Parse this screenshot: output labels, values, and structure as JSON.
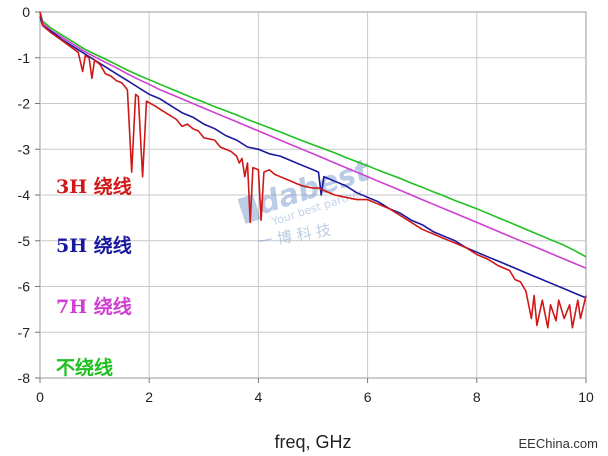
{
  "chart_data": {
    "type": "line",
    "xlabel": "freq, GHz",
    "ylabel": "",
    "xlim": [
      0,
      10
    ],
    "ylim": [
      -8,
      0
    ],
    "xticks": [
      "0",
      "2",
      "4",
      "6",
      "8",
      "10"
    ],
    "yticks": [
      "0",
      "-1",
      "-2",
      "-3",
      "-4",
      "-5",
      "-6",
      "-7",
      "-8"
    ],
    "grid": true,
    "legend_position": "left, inside plot",
    "series": [
      {
        "name": "3H 绕线",
        "color": "#d01818",
        "points": [
          [
            0,
            0
          ],
          [
            0.05,
            -0.3
          ],
          [
            0.2,
            -0.45
          ],
          [
            0.4,
            -0.62
          ],
          [
            0.55,
            -0.75
          ],
          [
            0.7,
            -0.88
          ],
          [
            0.78,
            -1.3
          ],
          [
            0.83,
            -0.95
          ],
          [
            0.9,
            -1.0
          ],
          [
            0.95,
            -1.45
          ],
          [
            1.0,
            -1.05
          ],
          [
            1.1,
            -1.15
          ],
          [
            1.2,
            -1.35
          ],
          [
            1.3,
            -1.4
          ],
          [
            1.4,
            -1.5
          ],
          [
            1.5,
            -1.55
          ],
          [
            1.6,
            -1.7
          ],
          [
            1.68,
            -3.5
          ],
          [
            1.75,
            -1.8
          ],
          [
            1.8,
            -1.85
          ],
          [
            1.88,
            -3.6
          ],
          [
            1.95,
            -1.95
          ],
          [
            2.1,
            -2.05
          ],
          [
            2.3,
            -2.2
          ],
          [
            2.5,
            -2.35
          ],
          [
            2.6,
            -2.5
          ],
          [
            2.7,
            -2.45
          ],
          [
            2.8,
            -2.55
          ],
          [
            2.9,
            -2.6
          ],
          [
            3.0,
            -2.75
          ],
          [
            3.2,
            -2.8
          ],
          [
            3.3,
            -2.95
          ],
          [
            3.5,
            -3.05
          ],
          [
            3.6,
            -3.15
          ],
          [
            3.65,
            -3.3
          ],
          [
            3.7,
            -3.2
          ],
          [
            3.75,
            -3.6
          ],
          [
            3.8,
            -3.3
          ],
          [
            3.85,
            -4.6
          ],
          [
            3.9,
            -3.4
          ],
          [
            4.0,
            -3.45
          ],
          [
            4.05,
            -4.55
          ],
          [
            4.1,
            -3.5
          ],
          [
            4.2,
            -3.45
          ],
          [
            4.3,
            -3.55
          ],
          [
            4.4,
            -3.6
          ],
          [
            4.5,
            -3.65
          ],
          [
            4.6,
            -3.7
          ],
          [
            4.7,
            -3.75
          ],
          [
            4.8,
            -3.8
          ],
          [
            5.0,
            -3.85
          ],
          [
            5.1,
            -3.85
          ],
          [
            5.2,
            -3.9
          ],
          [
            5.3,
            -3.95
          ],
          [
            5.4,
            -4.0
          ],
          [
            5.6,
            -4.05
          ],
          [
            5.8,
            -4.1
          ],
          [
            6.0,
            -4.1
          ],
          [
            6.2,
            -4.2
          ],
          [
            6.4,
            -4.3
          ],
          [
            6.6,
            -4.45
          ],
          [
            6.8,
            -4.6
          ],
          [
            7.0,
            -4.75
          ],
          [
            7.2,
            -4.85
          ],
          [
            7.4,
            -4.95
          ],
          [
            7.6,
            -5.05
          ],
          [
            7.8,
            -5.15
          ],
          [
            8.0,
            -5.3
          ],
          [
            8.2,
            -5.4
          ],
          [
            8.4,
            -5.55
          ],
          [
            8.6,
            -5.65
          ],
          [
            8.7,
            -5.85
          ],
          [
            8.8,
            -5.9
          ],
          [
            8.9,
            -6.1
          ],
          [
            9.0,
            -6.7
          ],
          [
            9.05,
            -6.2
          ],
          [
            9.1,
            -6.85
          ],
          [
            9.2,
            -6.3
          ],
          [
            9.3,
            -6.9
          ],
          [
            9.35,
            -6.4
          ],
          [
            9.45,
            -6.75
          ],
          [
            9.5,
            -6.3
          ],
          [
            9.6,
            -6.7
          ],
          [
            9.7,
            -6.4
          ],
          [
            9.75,
            -6.9
          ],
          [
            9.85,
            -6.3
          ],
          [
            9.9,
            -6.7
          ],
          [
            10.0,
            -6.2
          ]
        ]
      },
      {
        "name": "5H 绕线",
        "color": "#1818a0",
        "points": [
          [
            0,
            -0.1
          ],
          [
            0.05,
            -0.3
          ],
          [
            0.2,
            -0.42
          ],
          [
            0.4,
            -0.6
          ],
          [
            0.6,
            -0.75
          ],
          [
            0.8,
            -0.9
          ],
          [
            1.0,
            -1.05
          ],
          [
            1.2,
            -1.2
          ],
          [
            1.4,
            -1.35
          ],
          [
            1.6,
            -1.5
          ],
          [
            1.8,
            -1.65
          ],
          [
            2.0,
            -1.8
          ],
          [
            2.2,
            -1.9
          ],
          [
            2.4,
            -2.05
          ],
          [
            2.6,
            -2.2
          ],
          [
            2.8,
            -2.3
          ],
          [
            3.0,
            -2.45
          ],
          [
            3.2,
            -2.55
          ],
          [
            3.4,
            -2.7
          ],
          [
            3.6,
            -2.8
          ],
          [
            3.8,
            -2.95
          ],
          [
            4.0,
            -3.0
          ],
          [
            4.2,
            -3.1
          ],
          [
            4.4,
            -3.15
          ],
          [
            4.6,
            -3.25
          ],
          [
            4.8,
            -3.35
          ],
          [
            5.0,
            -3.45
          ],
          [
            5.1,
            -3.5
          ],
          [
            5.15,
            -4.0
          ],
          [
            5.2,
            -3.6
          ],
          [
            5.3,
            -3.65
          ],
          [
            5.4,
            -3.7
          ],
          [
            5.6,
            -3.8
          ],
          [
            5.8,
            -3.95
          ],
          [
            6.0,
            -4.05
          ],
          [
            6.2,
            -4.15
          ],
          [
            6.4,
            -4.3
          ],
          [
            6.6,
            -4.4
          ],
          [
            6.8,
            -4.55
          ],
          [
            7.0,
            -4.65
          ],
          [
            7.2,
            -4.8
          ],
          [
            7.4,
            -4.9
          ],
          [
            7.6,
            -5.0
          ],
          [
            7.8,
            -5.15
          ],
          [
            8.0,
            -5.25
          ],
          [
            8.2,
            -5.35
          ],
          [
            8.4,
            -5.45
          ],
          [
            8.6,
            -5.55
          ],
          [
            8.8,
            -5.65
          ],
          [
            9.0,
            -5.75
          ],
          [
            9.2,
            -5.85
          ],
          [
            9.4,
            -5.95
          ],
          [
            9.6,
            -6.05
          ],
          [
            9.8,
            -6.15
          ],
          [
            10.0,
            -6.25
          ]
        ]
      },
      {
        "name": "7H 绕线",
        "color": "#d040d0",
        "points": [
          [
            0,
            0
          ],
          [
            0.05,
            -0.25
          ],
          [
            0.2,
            -0.4
          ],
          [
            0.4,
            -0.55
          ],
          [
            0.6,
            -0.7
          ],
          [
            0.8,
            -0.85
          ],
          [
            1.0,
            -0.98
          ],
          [
            1.2,
            -1.1
          ],
          [
            1.4,
            -1.22
          ],
          [
            1.6,
            -1.35
          ],
          [
            1.8,
            -1.47
          ],
          [
            2.0,
            -1.58
          ],
          [
            2.2,
            -1.7
          ],
          [
            2.4,
            -1.8
          ],
          [
            2.6,
            -1.9
          ],
          [
            2.8,
            -2.0
          ],
          [
            3.0,
            -2.1
          ],
          [
            3.2,
            -2.2
          ],
          [
            3.4,
            -2.3
          ],
          [
            3.6,
            -2.4
          ],
          [
            3.8,
            -2.5
          ],
          [
            4.0,
            -2.6
          ],
          [
            4.2,
            -2.7
          ],
          [
            4.4,
            -2.8
          ],
          [
            4.6,
            -2.9
          ],
          [
            4.8,
            -3.0
          ],
          [
            5.0,
            -3.1
          ],
          [
            5.2,
            -3.2
          ],
          [
            5.4,
            -3.3
          ],
          [
            5.6,
            -3.4
          ],
          [
            5.8,
            -3.5
          ],
          [
            6.0,
            -3.6
          ],
          [
            6.2,
            -3.7
          ],
          [
            6.4,
            -3.8
          ],
          [
            6.6,
            -3.9
          ],
          [
            6.8,
            -4.0
          ],
          [
            7.0,
            -4.1
          ],
          [
            7.2,
            -4.2
          ],
          [
            7.4,
            -4.3
          ],
          [
            7.6,
            -4.4
          ],
          [
            7.8,
            -4.5
          ],
          [
            8.0,
            -4.6
          ],
          [
            8.2,
            -4.7
          ],
          [
            8.4,
            -4.8
          ],
          [
            8.6,
            -4.9
          ],
          [
            8.8,
            -5.0
          ],
          [
            9.0,
            -5.1
          ],
          [
            9.2,
            -5.2
          ],
          [
            9.4,
            -5.3
          ],
          [
            9.6,
            -5.4
          ],
          [
            9.8,
            -5.5
          ],
          [
            10.0,
            -5.6
          ]
        ]
      },
      {
        "name": "不绕线",
        "color": "#20c020",
        "points": [
          [
            0,
            0
          ],
          [
            0.05,
            -0.2
          ],
          [
            0.2,
            -0.35
          ],
          [
            0.4,
            -0.5
          ],
          [
            0.6,
            -0.65
          ],
          [
            0.8,
            -0.8
          ],
          [
            1.0,
            -0.92
          ],
          [
            1.2,
            -1.03
          ],
          [
            1.4,
            -1.15
          ],
          [
            1.6,
            -1.27
          ],
          [
            1.8,
            -1.38
          ],
          [
            2.0,
            -1.48
          ],
          [
            2.2,
            -1.58
          ],
          [
            2.4,
            -1.68
          ],
          [
            2.6,
            -1.78
          ],
          [
            2.8,
            -1.88
          ],
          [
            3.0,
            -1.97
          ],
          [
            3.2,
            -2.07
          ],
          [
            3.4,
            -2.16
          ],
          [
            3.6,
            -2.25
          ],
          [
            3.8,
            -2.35
          ],
          [
            4.0,
            -2.44
          ],
          [
            4.2,
            -2.53
          ],
          [
            4.4,
            -2.62
          ],
          [
            4.6,
            -2.72
          ],
          [
            4.8,
            -2.81
          ],
          [
            5.0,
            -2.9
          ],
          [
            5.2,
            -2.99
          ],
          [
            5.4,
            -3.08
          ],
          [
            5.6,
            -3.18
          ],
          [
            5.8,
            -3.27
          ],
          [
            6.0,
            -3.36
          ],
          [
            6.2,
            -3.46
          ],
          [
            6.4,
            -3.55
          ],
          [
            6.6,
            -3.64
          ],
          [
            6.8,
            -3.74
          ],
          [
            7.0,
            -3.83
          ],
          [
            7.2,
            -3.93
          ],
          [
            7.4,
            -4.02
          ],
          [
            7.6,
            -4.12
          ],
          [
            7.8,
            -4.21
          ],
          [
            8.0,
            -4.3
          ],
          [
            8.2,
            -4.4
          ],
          [
            8.4,
            -4.5
          ],
          [
            8.6,
            -4.6
          ],
          [
            8.8,
            -4.7
          ],
          [
            9.0,
            -4.8
          ],
          [
            9.2,
            -4.9
          ],
          [
            9.4,
            -5.0
          ],
          [
            9.6,
            -5.1
          ],
          [
            9.8,
            -5.22
          ],
          [
            10.0,
            -5.35
          ]
        ]
      }
    ]
  },
  "watermark": {
    "logo": "dabest",
    "slogan": "Your best partner",
    "cn": "一 博 科 技"
  },
  "source_label": "EEChina.com"
}
